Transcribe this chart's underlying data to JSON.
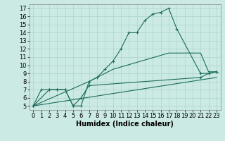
{
  "xlabel": "Humidex (Indice chaleur)",
  "bg_color": "#cceae4",
  "line_color": "#1a6b5a",
  "grid_color": "#aad4cc",
  "xlim": [
    -0.5,
    23.5
  ],
  "ylim": [
    4.5,
    17.5
  ],
  "xticks": [
    0,
    1,
    2,
    3,
    4,
    5,
    6,
    7,
    8,
    9,
    10,
    11,
    12,
    13,
    14,
    15,
    16,
    17,
    18,
    19,
    20,
    21,
    22,
    23
  ],
  "yticks": [
    5,
    6,
    7,
    8,
    9,
    10,
    11,
    12,
    13,
    14,
    15,
    16,
    17
  ],
  "line1_x": [
    0,
    1,
    2,
    3,
    4,
    5,
    6,
    7,
    8,
    9,
    10,
    11,
    12,
    13,
    14,
    15,
    16,
    17,
    18,
    21,
    22,
    23
  ],
  "line1_y": [
    5,
    7,
    7,
    7,
    7,
    5,
    5,
    8,
    8.5,
    9.5,
    10.5,
    12,
    14,
    14,
    15.5,
    16.3,
    16.5,
    17,
    14.5,
    9,
    9,
    9.2
  ],
  "line2_x": [
    0,
    2,
    3,
    4,
    5,
    6,
    7,
    21,
    22,
    23
  ],
  "line2_y": [
    5,
    7,
    7,
    7,
    5,
    6,
    7.5,
    8.5,
    9,
    9.2
  ],
  "line3_x": [
    0,
    23
  ],
  "line3_y": [
    5,
    8.5
  ],
  "line4_x": [
    0,
    7,
    10,
    17,
    21,
    22,
    23
  ],
  "line4_y": [
    5,
    8,
    9.5,
    11.5,
    11.5,
    9.2,
    9.2
  ],
  "font_size": 7
}
